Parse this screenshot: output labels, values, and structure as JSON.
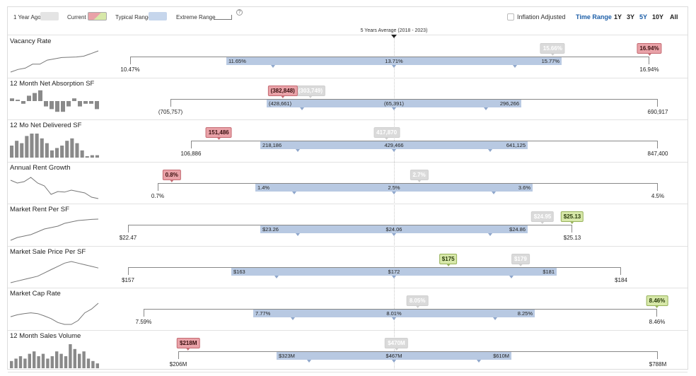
{
  "legend": {
    "year_ago": "1 Year Ago",
    "current": "Current",
    "typical": "Typical Range",
    "extreme": "Extreme Range",
    "help": "?",
    "inflation_adjusted": "Inflation Adjusted",
    "time_range": "Time Range",
    "ranges": [
      "1Y",
      "3Y",
      "5Y",
      "10Y",
      "All"
    ],
    "selected_range": "5Y",
    "colors": {
      "year_ago": "#dadada",
      "current_neg": "#e9a2a8",
      "current_pos": "#d7e8a9",
      "typical": "#b8c9e2",
      "link": "#1d5fa8"
    }
  },
  "average_label": "5 Years Average (2018 - 2023)",
  "metrics": [
    {
      "title": "Vacancy Rate",
      "extreme": {
        "min": 10.47,
        "max": 16.94,
        "min_label": "10.47%",
        "max_label": "16.94%"
      },
      "typical": {
        "low": 11.65,
        "avg": 13.71,
        "high": 15.77,
        "low_label": "11.65%",
        "avg_label": "13.71%",
        "high_label": "15.77%"
      },
      "current": {
        "value": 16.94,
        "label": "16.94%",
        "tone": "red"
      },
      "year_ago": {
        "value": 15.66,
        "label": "15.66%"
      },
      "spark": [
        2,
        3,
        3.5,
        5,
        5,
        6.5,
        7,
        7.5,
        7.6,
        7.7,
        8,
        9,
        10
      ]
    },
    {
      "title": "12 Month Net Absorption SF",
      "extreme": {
        "min": -705757,
        "max": 690917,
        "min_label": "(705,757)",
        "max_label": "690,917"
      },
      "typical": {
        "low": -428661,
        "avg": -65391,
        "high": 296266,
        "low_label": "(428,661)",
        "avg_label": "(65,391)",
        "high_label": "296,266"
      },
      "current": {
        "value": -382848,
        "label": "(382,848)",
        "tone": "red"
      },
      "year_ago": {
        "value": -303749,
        "label": "(303,749)"
      },
      "spark": [
        1,
        0.5,
        -1,
        2,
        3,
        4,
        -2,
        -3,
        -4,
        -4,
        -2,
        1,
        -2,
        -1,
        -1,
        -3
      ]
    },
    {
      "title": "12 Mo Net Delivered SF",
      "extreme": {
        "min": 106886,
        "max": 847400,
        "min_label": "106,886",
        "max_label": "847,400"
      },
      "typical": {
        "low": 218186,
        "avg": 429466,
        "high": 641125,
        "low_label": "218,186",
        "avg_label": "429,466",
        "high_label": "641,125"
      },
      "current": {
        "value": 151486,
        "label": "151,486",
        "tone": "red"
      },
      "year_ago": {
        "value": 417870,
        "label": "417,870"
      },
      "spark": [
        5,
        7,
        6,
        9,
        10,
        10,
        8,
        6,
        3,
        4,
        5,
        7,
        8,
        6,
        3,
        0.6,
        1,
        1
      ]
    },
    {
      "title": "Annual Rent Growth",
      "extreme": {
        "min": 0.7,
        "max": 4.5,
        "min_label": "0.7%",
        "max_label": "4.5%"
      },
      "typical": {
        "low": 1.4,
        "avg": 2.5,
        "high": 3.6,
        "low_label": "1.4%",
        "avg_label": "2.5%",
        "high_label": "3.6%"
      },
      "current": {
        "value": 0.8,
        "label": "0.8%",
        "tone": "red"
      },
      "year_ago": {
        "value": 2.7,
        "label": "2.7%"
      },
      "spark": [
        8,
        7,
        7.5,
        9,
        7,
        6,
        3,
        4,
        3.8,
        4.5,
        4,
        3.5,
        2,
        1.5
      ]
    },
    {
      "title": "Market Rent Per SF",
      "extreme": {
        "min": 22.47,
        "max": 25.13,
        "min_label": "$22.47",
        "max_label": "$25.13"
      },
      "typical": {
        "low": 23.26,
        "avg": 24.06,
        "high": 24.86,
        "low_label": "$23.26",
        "avg_label": "$24.06",
        "high_label": "$24.86"
      },
      "current": {
        "value": 25.13,
        "label": "$25.13",
        "tone": "green"
      },
      "year_ago": {
        "value": 24.95,
        "label": "$24.95"
      },
      "spark": [
        1,
        2,
        2.5,
        3,
        4,
        5,
        5.5,
        6,
        7,
        7.5,
        8,
        8.2,
        8.4,
        8.5
      ]
    },
    {
      "title": "Market Sale Price Per SF",
      "extreme": {
        "min": 157,
        "max": 184,
        "min_label": "$157",
        "max_label": "$184"
      },
      "typical": {
        "low": 163,
        "avg": 172,
        "high": 181,
        "low_label": "$163",
        "avg_label": "$172",
        "high_label": "$181"
      },
      "current": {
        "value": 175,
        "label": "$175",
        "tone": "green"
      },
      "year_ago": {
        "value": 179,
        "label": "$179"
      },
      "spark": [
        2,
        2.5,
        3,
        3.5,
        4,
        5,
        6,
        7,
        8,
        8.5,
        8,
        7.5,
        7,
        6.5
      ]
    },
    {
      "title": "Market Cap Rate",
      "extreme": {
        "min": 7.59,
        "max": 8.46,
        "min_label": "7.59%",
        "max_label": "8.46%"
      },
      "typical": {
        "low": 7.77,
        "avg": 8.01,
        "high": 8.25,
        "low_label": "7.77%",
        "avg_label": "8.01%",
        "high_label": "8.25%"
      },
      "current": {
        "value": 8.46,
        "label": "8.46%",
        "tone": "green"
      },
      "year_ago": {
        "value": 8.05,
        "label": "8.05%"
      },
      "spark": [
        5,
        5.5,
        5.8,
        6,
        5.8,
        5.2,
        4.5,
        3.5,
        3,
        3,
        4,
        6,
        7,
        8.5
      ]
    },
    {
      "title": "12 Month Sales Volume",
      "extreme": {
        "min": 206,
        "max": 788,
        "min_label": "$206M",
        "max_label": "$788M"
      },
      "typical": {
        "low": 323,
        "avg": 467,
        "high": 610,
        "low_label": "$323M",
        "avg_label": "$467M",
        "high_label": "$610M"
      },
      "current": {
        "value": 218,
        "label": "$218M",
        "tone": "red"
      },
      "year_ago": {
        "value": 470,
        "label": "$470M"
      },
      "spark": [
        3,
        4,
        5,
        4,
        6,
        7,
        5,
        6,
        4,
        5,
        7,
        6,
        5,
        10,
        8,
        6,
        7,
        4,
        3,
        2
      ]
    }
  ]
}
